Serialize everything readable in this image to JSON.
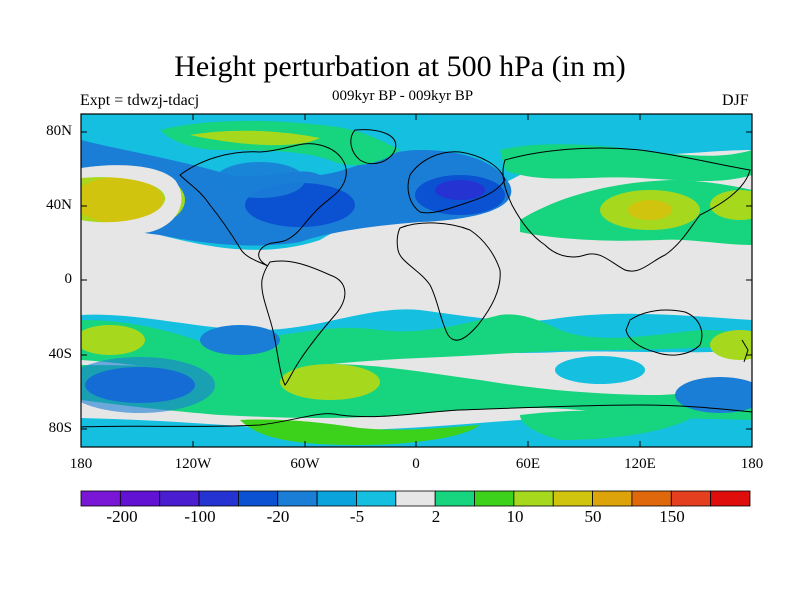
{
  "title": "Height perturbation at 500 hPa (in m)",
  "subtitle": "009kyr BP - 009kyr BP",
  "experiment": "Expt = tdwzj-tdacj",
  "season": "DJF",
  "map": {
    "projection": "cylindrical equidistant",
    "lon_range": [
      -180,
      180
    ],
    "lat_range": [
      -90,
      90
    ],
    "y_tick_labels": [
      "80N",
      "40N",
      "0",
      "40S",
      "80S"
    ],
    "x_tick_labels": [
      "180",
      "120W",
      "60W",
      "0",
      "60E",
      "120E",
      "180"
    ]
  },
  "colorbar": {
    "colors": [
      "#7a17d6",
      "#6112d2",
      "#4a1dd0",
      "#2433d1",
      "#0a52d1",
      "#1a7ed6",
      "#0aa3dc",
      "#14bfe0",
      "#e6e6e6",
      "#17d47f",
      "#3cd21c",
      "#a6d91e",
      "#d1c40e",
      "#dca30a",
      "#e0680c",
      "#e44020",
      "#e00d0d"
    ],
    "labels": [
      "-200",
      "-100",
      "-20",
      "-5",
      "2",
      "10",
      "50",
      "150"
    ]
  },
  "contour_features": [
    {
      "name": "north-pacific-low",
      "level": "-50",
      "color": "#0a52d1"
    },
    {
      "name": "north-pacific-high-core",
      "level": "20",
      "color": "#d1c40e"
    },
    {
      "name": "north-america-low",
      "level": "-50",
      "color": "#0a52d1"
    },
    {
      "name": "europe-low",
      "level": "-50",
      "color": "#0a52d1"
    },
    {
      "name": "asia-high",
      "level": "20",
      "color": "#d1c40e"
    },
    {
      "name": "south-atlantic-high",
      "level": "10",
      "color": "#a6d91e"
    },
    {
      "name": "south-pacific-low",
      "level": "-50",
      "color": "#0a52d1"
    },
    {
      "name": "southern-ocean-ring",
      "level": "5",
      "color": "#17d47f"
    }
  ]
}
